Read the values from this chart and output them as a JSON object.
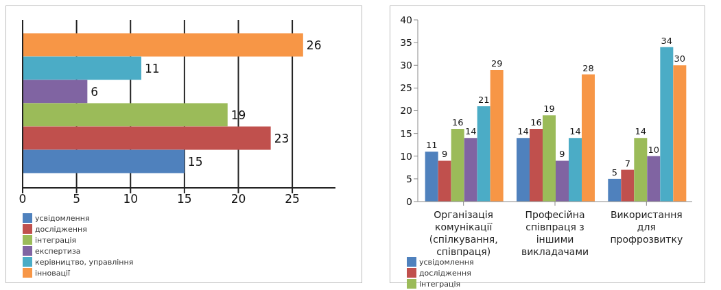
{
  "chart_data": [
    {
      "type": "bar",
      "orientation": "horizontal",
      "categories": [
        null
      ],
      "xlim": [
        0,
        29
      ],
      "xticks": [
        0,
        5,
        10,
        15,
        20,
        25
      ],
      "grid": "x",
      "data_labels": true,
      "legend": "bottom left",
      "series": [
        {
          "name": "усвідомлення",
          "color": "#4f81bd",
          "values": [
            15
          ]
        },
        {
          "name": "дослідження",
          "color": "#c0504d",
          "values": [
            23
          ]
        },
        {
          "name": "інтеграція",
          "color": "#9bbb59",
          "values": [
            19
          ]
        },
        {
          "name": "експертиза",
          "color": "#8064a2",
          "values": [
            6
          ]
        },
        {
          "name": "керівництво, управління",
          "color": "#4bacc6",
          "values": [
            11
          ]
        },
        {
          "name": "інновації",
          "color": "#f79646",
          "values": [
            26
          ]
        }
      ]
    },
    {
      "type": "bar",
      "categories": [
        "Організація комунікації (спілкування, співпраця)",
        "Професійна співпраця з іншими викладачами",
        "Використання для профрозвитку"
      ],
      "ylim": [
        0,
        40
      ],
      "yticks": [
        0,
        5,
        10,
        15,
        20,
        25,
        30,
        35,
        40
      ],
      "grid": false,
      "data_labels": true,
      "legend": "bottom left",
      "series": [
        {
          "name": "усвідомлення",
          "color": "#4f81bd",
          "values": [
            11,
            14,
            5
          ]
        },
        {
          "name": "дослідження",
          "color": "#c0504d",
          "values": [
            9,
            16,
            7
          ]
        },
        {
          "name": "інтеграція",
          "color": "#9bbb59",
          "values": [
            16,
            19,
            14
          ]
        },
        {
          "color": "#8064a2",
          "values": [
            14,
            9,
            10
          ]
        },
        {
          "color": "#4bacc6",
          "values": [
            21,
            14,
            34
          ]
        },
        {
          "color": "#f79646",
          "values": [
            29,
            28,
            30
          ]
        }
      ]
    }
  ]
}
